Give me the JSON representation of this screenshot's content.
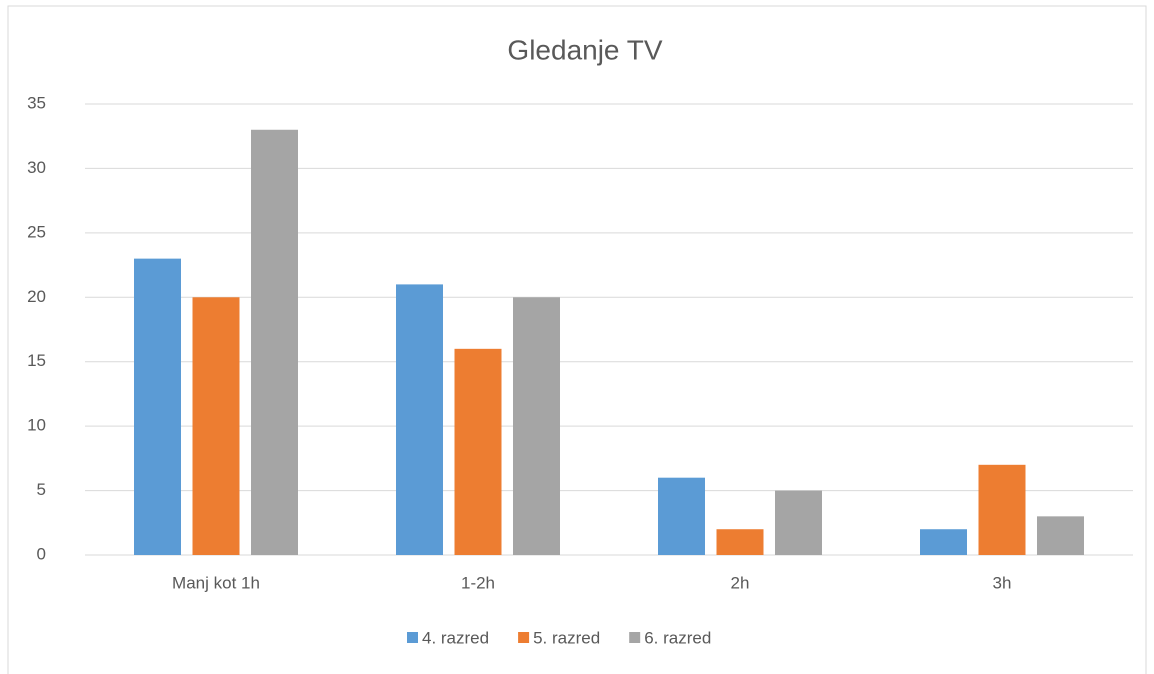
{
  "chart_data": {
    "type": "bar",
    "title": "Gledanje TV",
    "categories": [
      "Manj kot 1h",
      "1-2h",
      "2h",
      "3h"
    ],
    "series": [
      {
        "name": "4. razred",
        "color": "#5b9bd5",
        "values": [
          23,
          21,
          6,
          2
        ]
      },
      {
        "name": "5. razred",
        "color": "#ed7d31",
        "values": [
          20,
          16,
          2,
          7
        ]
      },
      {
        "name": "6. razred",
        "color": "#a5a5a5",
        "values": [
          33,
          20,
          5,
          3
        ]
      }
    ],
    "ylim": [
      0,
      35
    ],
    "yticks": [
      0,
      5,
      10,
      15,
      20,
      25,
      30,
      35
    ],
    "grid": true,
    "legend": "bottom"
  }
}
